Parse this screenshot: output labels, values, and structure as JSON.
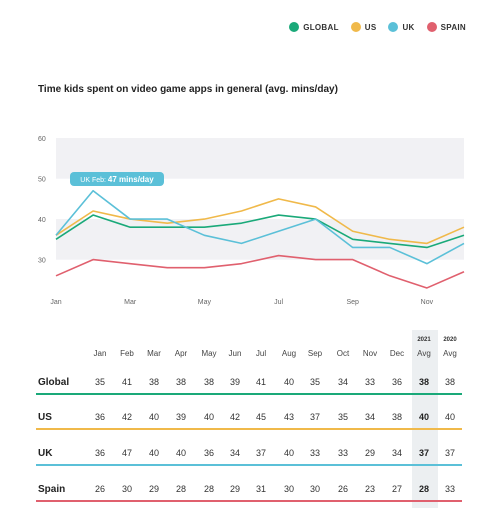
{
  "legend": [
    {
      "label": "GLOBAL",
      "color": "#1aa979"
    },
    {
      "label": "US",
      "color": "#f0b94a"
    },
    {
      "label": "UK",
      "color": "#5bc0d8"
    },
    {
      "label": "SPAIN",
      "color": "#e0606e"
    }
  ],
  "title": "Time kids spent on video game apps in general (avg. mins/day)",
  "chart_data": {
    "type": "line",
    "x": [
      "Jan",
      "Feb",
      "Mar",
      "Apr",
      "May",
      "Jun",
      "Jul",
      "Aug",
      "Sep",
      "Oct",
      "Nov",
      "Dec"
    ],
    "xtick_labels": [
      "Jan",
      "Mar",
      "May",
      "Jul",
      "Sep",
      "Nov"
    ],
    "ylim": [
      22,
      62
    ],
    "yticks": [
      30,
      40,
      50,
      60
    ],
    "series": [
      {
        "name": "GLOBAL",
        "color": "#1aa979",
        "values": [
          35,
          41,
          38,
          38,
          38,
          39,
          41,
          40,
          35,
          34,
          33,
          36
        ]
      },
      {
        "name": "US",
        "color": "#f0b94a",
        "values": [
          36,
          42,
          40,
          39,
          40,
          42,
          45,
          43,
          37,
          35,
          34,
          38
        ]
      },
      {
        "name": "UK",
        "color": "#5bc0d8",
        "values": [
          36,
          47,
          40,
          40,
          36,
          34,
          37,
          40,
          33,
          33,
          29,
          34
        ]
      },
      {
        "name": "SPAIN",
        "color": "#e0606e",
        "values": [
          26,
          30,
          29,
          28,
          28,
          29,
          31,
          30,
          30,
          26,
          23,
          27
        ]
      }
    ],
    "annotation": {
      "prefix": "UK Feb:",
      "value": "47 mins/day"
    }
  },
  "table": {
    "year_headers": {
      "current": "2021",
      "previous": "2020"
    },
    "columns": [
      "Jan",
      "Feb",
      "Mar",
      "Apr",
      "May",
      "Jun",
      "Jul",
      "Aug",
      "Sep",
      "Oct",
      "Nov",
      "Dec",
      "Avg",
      "Avg"
    ],
    "rows": [
      {
        "label": "Global",
        "color": "#1aa979",
        "values": [
          "35",
          "41",
          "38",
          "38",
          "38",
          "39",
          "41",
          "40",
          "35",
          "34",
          "33",
          "36"
        ],
        "avg2021": "38",
        "avg2020": "38"
      },
      {
        "label": "US",
        "color": "#f0b94a",
        "values": [
          "36",
          "42",
          "40",
          "39",
          "40",
          "42",
          "45",
          "43",
          "37",
          "35",
          "34",
          "38"
        ],
        "avg2021": "40",
        "avg2020": "40"
      },
      {
        "label": "UK",
        "color": "#5bc0d8",
        "values": [
          "36",
          "47",
          "40",
          "40",
          "36",
          "34",
          "37",
          "40",
          "33",
          "33",
          "29",
          "34"
        ],
        "avg2021": "37",
        "avg2020": "37"
      },
      {
        "label": "Spain",
        "color": "#e0606e",
        "values": [
          "26",
          "30",
          "29",
          "28",
          "28",
          "29",
          "31",
          "30",
          "30",
          "26",
          "23",
          "27"
        ],
        "avg2021": "28",
        "avg2020": "33"
      }
    ]
  }
}
